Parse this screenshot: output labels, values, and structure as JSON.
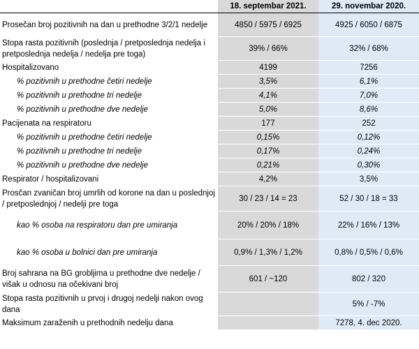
{
  "table": {
    "headers": [
      "",
      "18. septembar 2021.",
      "29. novembar 2020."
    ],
    "rows": [
      {
        "label": "Prosečan broj pozitivnih na dan u prethodne 3/2/1 nedelje",
        "sep": "4850 / 5975 / 6925",
        "nov": "4925 / 6050 / 6875",
        "sub": false
      },
      {
        "label": "Stopa rasta pozitivnih (poslednja / pretposlednja nedelja i pretposlednja nedelja / nedelja pre toga)",
        "sep": "39% / 66%",
        "nov": "32% / 68%",
        "sub": false
      },
      {
        "label": "Hospitalizovano",
        "sep": "4199",
        "nov": "7256",
        "sub": false
      },
      {
        "label": "% pozitivnih u prethodne četiri nedelje",
        "sep": "3,5%",
        "nov": "6,1%",
        "sub": true
      },
      {
        "label": "% pozitivnih u prethodne tri nedelje",
        "sep": "4,1%",
        "nov": "7,0%",
        "sub": true
      },
      {
        "label": "% pozitivnih u prethodne dve nedelje",
        "sep": "5,0%",
        "nov": "8,6%",
        "sub": true
      },
      {
        "label": "Pacijenata na respiratoru",
        "sep": "177",
        "nov": "252",
        "sub": false
      },
      {
        "label": "% pozitivnih u prethodne četiri nedelje",
        "sep": "0,15%",
        "nov": "0,12%",
        "sub": true
      },
      {
        "label": "% pozitivnih u prethodne tri nedelje",
        "sep": "0,17%",
        "nov": "0,24%",
        "sub": true
      },
      {
        "label": "% pozitivnih u prethodne dve nedelje",
        "sep": "0,21%",
        "nov": "0,30%",
        "sub": true
      },
      {
        "label": "Respirator / hospitalizovani",
        "sep": "4,2%",
        "nov": "3,5%",
        "sub": false
      },
      {
        "label": "Prosčan zvaničan broj umrlih od korone na dan u poslednjoj / pretposlednjoj / nedelji pre toga",
        "sep": "30 / 23 / 14 = 23",
        "nov": "52 / 30 / 18 = 33",
        "sub": false
      },
      {
        "label": "kao % osoba na respiratoru dan pre umiranja",
        "sep": "20% / 20% / 18%",
        "nov": "22% / 16% / 13%",
        "sub": true
      },
      {
        "label": "kao % osoba u bolnici dan pre umiranja",
        "sep": "0,9% / 1,3% / 1,2%",
        "nov": "0,8% / 0,5% / 0,6%",
        "sub": true
      },
      {
        "label": "Broj sahrana na BG grobljima u prethodne dve nedelje / višak u odnosu na očekivani broj",
        "sep": "601 / ~120",
        "nov": "802 / 320",
        "sub": false
      },
      {
        "label": "Stopa rasta pozitivnih u prvoj i drugoj nedelji nakon ovog dana",
        "sep": "",
        "nov": "5% / -7%",
        "sub": false
      },
      {
        "label": "Maksimum zaraženih u prethodnih nedelju dana",
        "sep": "",
        "nov": "7278, 4. dec 2020.",
        "sub": false
      }
    ]
  },
  "colors": {
    "sep_column": "#d9d9d9",
    "nov_column": "#deebf7"
  }
}
